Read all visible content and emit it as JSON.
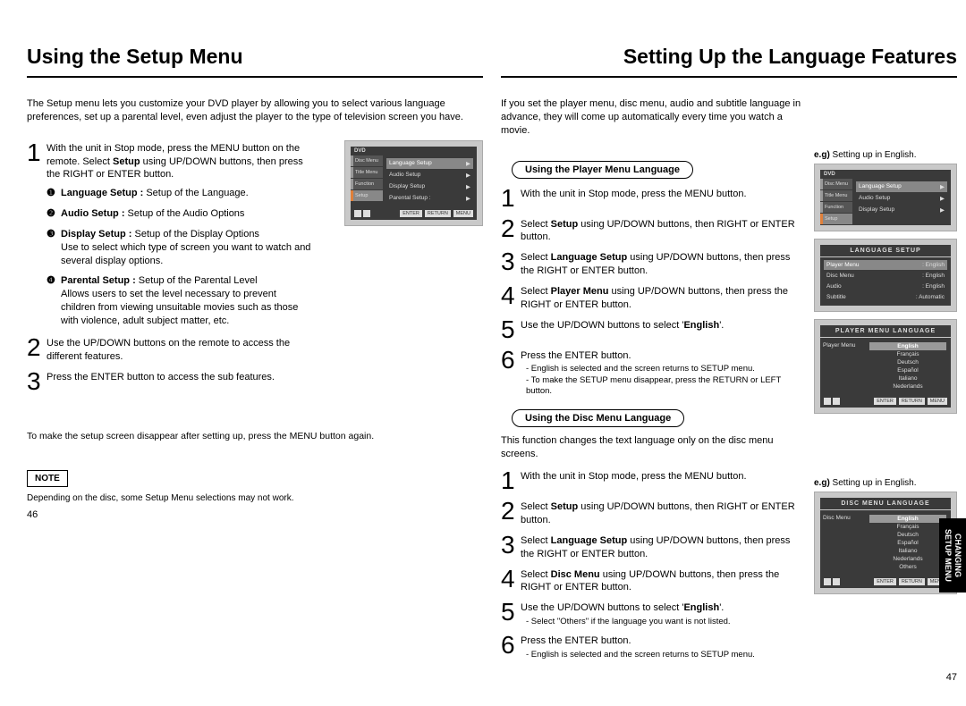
{
  "left": {
    "title": "Using the Setup Menu",
    "intro": "The Setup menu lets you customize your DVD player by allowing you to select various language preferences, set up a parental level, even adjust the player to the type of television screen you have.",
    "step1": "With the unit in Stop mode, press the MENU button on the remote. Select Setup using UP/DOWN buttons, then press the RIGHT or ENTER button.",
    "subs": [
      {
        "bullet": "❶",
        "bold": "Language Setup :",
        "text": " Setup of the Language."
      },
      {
        "bullet": "❷",
        "bold": "Audio Setup :",
        "text": " Setup of the Audio Options"
      },
      {
        "bullet": "❸",
        "bold": "Display Setup :",
        "text": " Setup of the Display Options\nUse to select which type of screen you want to watch and several display options."
      },
      {
        "bullet": "❹",
        "bold": "Parental Setup :",
        "text": " Setup of the Parental Level\nAllows users to set the level necessary to prevent children from viewing unsuitable movies such as those with violence, adult subject matter, etc."
      }
    ],
    "step2": "Use the UP/DOWN buttons on the remote to access the different features.",
    "step3": "Press the ENTER button to access the sub features.",
    "closing": "To make the setup screen disappear after setting up, press the MENU button again.",
    "note_label": "NOTE",
    "note_text": "Depending on the disc, some Setup Menu selections may not work.",
    "page_num": "46",
    "osd": {
      "dvd": "DVD",
      "side": [
        {
          "t": "Disc Menu"
        },
        {
          "t": "Title Menu"
        },
        {
          "t": "Function"
        },
        {
          "t": "Setup",
          "active": true
        }
      ],
      "rows": [
        {
          "l": "Language Setup",
          "hl": true
        },
        {
          "l": "Audio Setup"
        },
        {
          "l": "Display Setup"
        },
        {
          "l": "Parental Setup :"
        }
      ],
      "btns": [
        "ENTER",
        "RETURN",
        "MENU"
      ]
    }
  },
  "right": {
    "title": "Setting Up the Language Features",
    "intro": "If you set the player menu, disc menu, audio and subtitle language in advance, they will come up automatically every time you watch a movie.",
    "section1_label": "Using the Player Menu Language",
    "s1_steps": [
      {
        "n": "1",
        "t": "With the unit in Stop mode, press the MENU button."
      },
      {
        "n": "2",
        "t": "Select Setup using UP/DOWN buttons, then RIGHT or ENTER button.",
        "b": "Setup"
      },
      {
        "n": "3",
        "t": "Select Language Setup using UP/DOWN buttons, then press the RIGHT or ENTER button.",
        "b": "Language Setup"
      },
      {
        "n": "4",
        "t": "Select Player Menu using UP/DOWN buttons, then press the RIGHT or ENTER button.",
        "b": "Player Menu"
      },
      {
        "n": "5",
        "t": "Use the UP/DOWN buttons to select 'English'.",
        "b": "English"
      },
      {
        "n": "6",
        "t": "Press the ENTER button.",
        "sub": "- English is selected and the screen returns to SETUP menu.\n- To make the SETUP menu disappear, press the RETURN or LEFT button."
      }
    ],
    "section2_label": "Using the Disc Menu Language",
    "section2_intro": "This function changes the text language only on the disc menu screens.",
    "s2_steps": [
      {
        "n": "1",
        "t": "With the unit in Stop mode, press the MENU button."
      },
      {
        "n": "2",
        "t": "Select Setup using UP/DOWN buttons, then RIGHT or ENTER button.",
        "b": "Setup"
      },
      {
        "n": "3",
        "t": "Select Language Setup using UP/DOWN buttons, then press the RIGHT or ENTER button.",
        "b": "Language Setup"
      },
      {
        "n": "4",
        "t": "Select Disc Menu using UP/DOWN buttons, then press the RIGHT or ENTER button.",
        "b": "Disc Menu"
      },
      {
        "n": "5",
        "t": "Use the UP/DOWN buttons to select 'English'.",
        "b": "English",
        "sub": "- Select \"Others\" if the language you want is not listed."
      },
      {
        "n": "6",
        "t": "Press the ENTER button.",
        "sub": "- English is selected and the screen returns to SETUP menu."
      }
    ],
    "eg1": "e.g) Setting up in English.",
    "eg2": "e.g) Setting up in English.",
    "page_num": "47",
    "side_tab": "CHANGING\nSETUP MENU",
    "osd1": {
      "dvd": "DVD",
      "side": [
        {
          "t": "Disc Menu"
        },
        {
          "t": "Title Menu"
        },
        {
          "t": "Function"
        },
        {
          "t": "Setup",
          "active": true
        }
      ],
      "rows": [
        {
          "l": "Language Setup",
          "hl": true
        },
        {
          "l": "Audio Setup"
        },
        {
          "l": "Display Setup"
        }
      ],
      "btns": [
        "ENTER",
        "RETURN",
        "MENU"
      ]
    },
    "osd2": {
      "header": "LANGUAGE SETUP",
      "rows": [
        {
          "l": "Player Menu",
          "r": ": English",
          "hl": true
        },
        {
          "l": "Disc Menu",
          "r": ": English"
        },
        {
          "l": "Audio",
          "r": ": English"
        },
        {
          "l": "Subtitle",
          "r": ": Automatic"
        }
      ]
    },
    "osd3": {
      "header": "PLAYER MENU LANGUAGE",
      "label": "Player Menu",
      "langs": [
        "English",
        "Français",
        "Deutsch",
        "Español",
        "Italiano",
        "Nederlands"
      ],
      "btns": [
        "ENTER",
        "RETURN",
        "MENU"
      ]
    },
    "osd4": {
      "header": "DISC MENU LANGUAGE",
      "label": "Disc Menu",
      "langs": [
        "English",
        "Français",
        "Deutsch",
        "Español",
        "Italiano",
        "Nederlands",
        "Others"
      ],
      "btns": [
        "ENTER",
        "RETURN",
        "MENU"
      ]
    }
  }
}
